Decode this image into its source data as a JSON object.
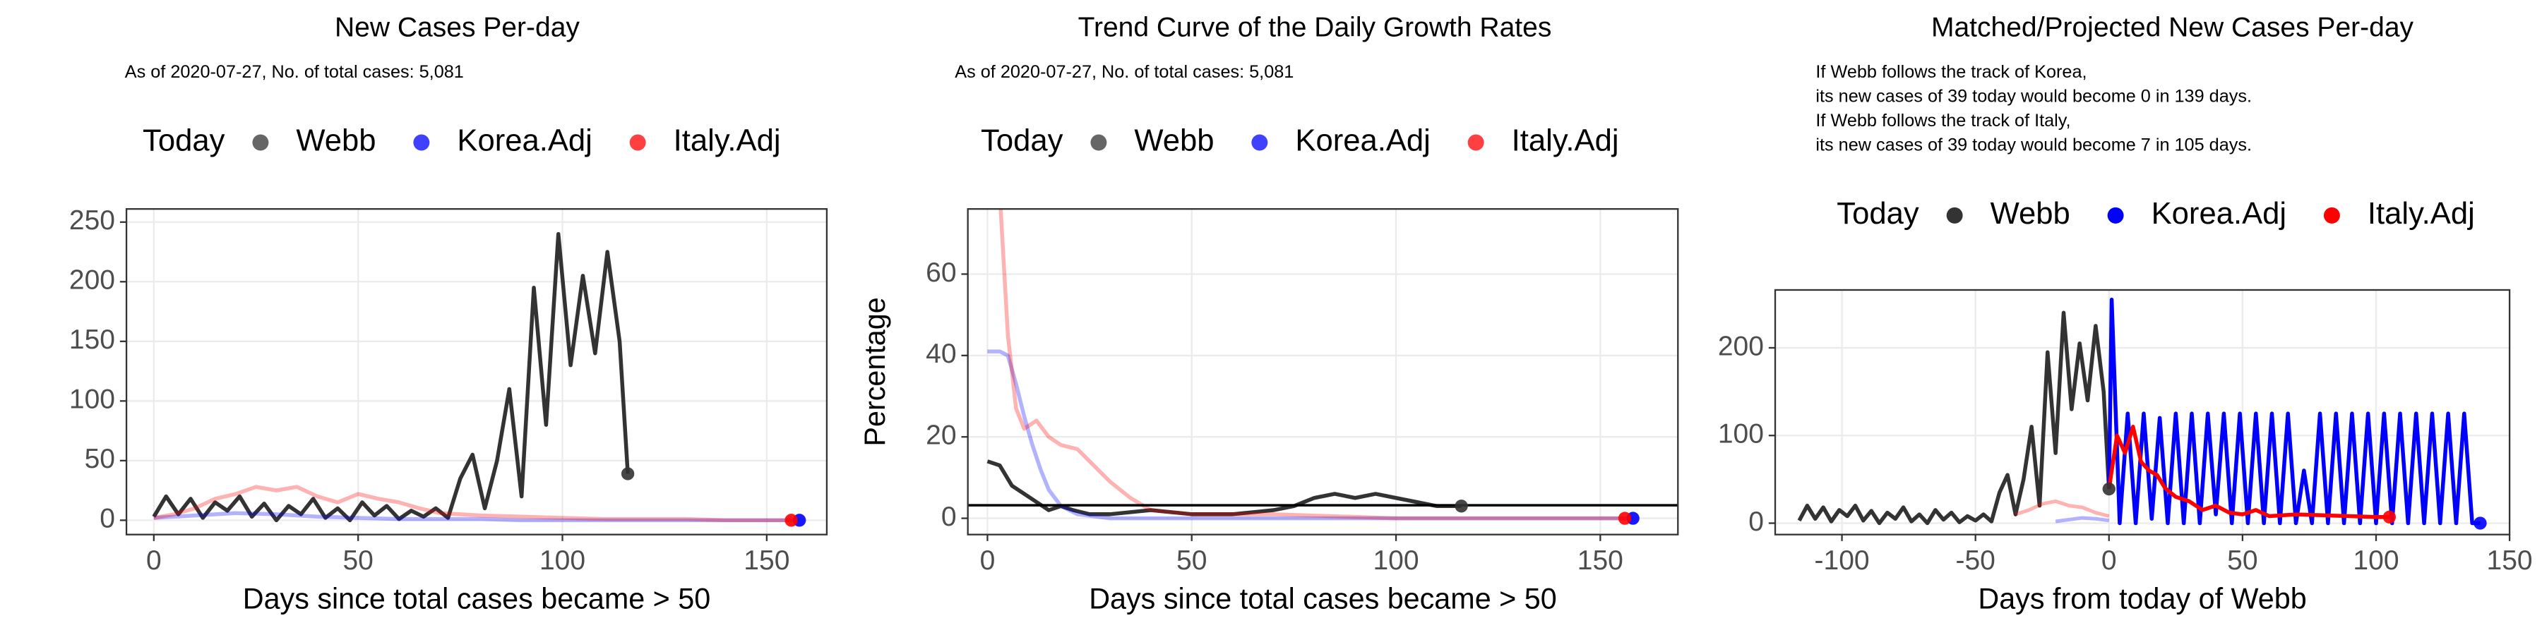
{
  "chart_data": [
    {
      "type": "line",
      "title": "New Cases Per-day",
      "subtitle": "As of 2020-07-27, No. of total cases: 5,081",
      "legend_title": "Today",
      "legend_opacity": 0.75,
      "xlabel": "Days since total cases became > 50",
      "xlim": [
        -6.7,
        164.7
      ],
      "xticks": [
        0,
        50,
        100,
        150
      ],
      "ylim": [
        -12,
        261
      ],
      "yticks": [
        0,
        50,
        100,
        150,
        200,
        250
      ],
      "grid": true,
      "series": [
        {
          "name": "Webb",
          "color": "#333333",
          "opacity": 1,
          "x": [
            0,
            3,
            6,
            9,
            12,
            15,
            18,
            21,
            24,
            27,
            30,
            33,
            36,
            39,
            42,
            45,
            48,
            51,
            54,
            57,
            60,
            63,
            66,
            69,
            72,
            75,
            78,
            81,
            84,
            87,
            90,
            93,
            96,
            99,
            102,
            105,
            108,
            111,
            114,
            116
          ],
          "values": [
            3,
            20,
            5,
            18,
            2,
            15,
            8,
            20,
            3,
            14,
            0,
            12,
            5,
            18,
            2,
            10,
            0,
            15,
            4,
            12,
            1,
            8,
            3,
            10,
            2,
            35,
            55,
            10,
            50,
            110,
            20,
            195,
            80,
            240,
            130,
            205,
            140,
            225,
            150,
            39
          ]
        },
        {
          "name": "Korea.Adj",
          "color": "#0000ff",
          "opacity": 0.3,
          "x": [
            0,
            10,
            20,
            30,
            40,
            50,
            60,
            70,
            80,
            90,
            100,
            110,
            120,
            130,
            140,
            150,
            158
          ],
          "values": [
            2,
            4,
            6,
            5,
            3,
            2,
            1,
            1,
            1,
            0,
            0,
            0,
            0,
            0,
            0,
            0,
            0
          ]
        },
        {
          "name": "Italy.Adj",
          "color": "#ff0000",
          "opacity": 0.3,
          "x": [
            0,
            5,
            10,
            15,
            20,
            25,
            30,
            35,
            40,
            45,
            50,
            55,
            60,
            65,
            70,
            80,
            90,
            100,
            110,
            120,
            130,
            140,
            150,
            156
          ],
          "values": [
            2,
            5,
            10,
            18,
            22,
            28,
            25,
            28,
            20,
            15,
            22,
            18,
            15,
            10,
            6,
            4,
            3,
            2,
            1,
            1,
            1,
            0,
            0,
            0
          ]
        }
      ]
    },
    {
      "type": "line",
      "title": "Trend Curve of the Daily Growth Rates",
      "subtitle": "As of 2020-07-27, No. of total cases: 5,081",
      "legend_title": "Today",
      "legend_opacity": 0.75,
      "xlabel": "Days since total cases became > 50",
      "ylabel": "Percentage",
      "xlim": [
        -4.8,
        169
      ],
      "xticks": [
        0,
        50,
        100,
        150
      ],
      "ylim": [
        -4,
        76
      ],
      "yticks": [
        0,
        20,
        40,
        60
      ],
      "grid": true,
      "hline": 3.2,
      "series": [
        {
          "name": "Webb",
          "color": "#333333",
          "opacity": 1,
          "x": [
            0,
            3,
            6,
            9,
            12,
            15,
            18,
            21,
            25,
            30,
            40,
            50,
            60,
            70,
            75,
            80,
            85,
            90,
            95,
            100,
            105,
            110,
            116
          ],
          "values": [
            14,
            13,
            8,
            6,
            4,
            2,
            3,
            2,
            1,
            1,
            2,
            1,
            1,
            2,
            3,
            5,
            6,
            5,
            6,
            5,
            4,
            3,
            3
          ]
        },
        {
          "name": "Korea.Adj",
          "color": "#0000ff",
          "opacity": 0.3,
          "x": [
            0,
            3,
            5,
            7,
            9,
            11,
            13,
            15,
            18,
            22,
            30,
            50,
            80,
            120,
            158
          ],
          "values": [
            41,
            41,
            40,
            33,
            25,
            18,
            12,
            7,
            3,
            1,
            0,
            0,
            0,
            0,
            0
          ]
        },
        {
          "name": "Italy.Adj",
          "color": "#ff0000",
          "opacity": 0.3,
          "x": [
            3,
            5,
            7,
            9,
            12,
            15,
            18,
            22,
            26,
            30,
            35,
            40,
            50,
            70,
            100,
            130,
            156
          ],
          "values": [
            80,
            45,
            27,
            22,
            24,
            20,
            18,
            17,
            13,
            9,
            5,
            2,
            1,
            1,
            0,
            0,
            0
          ]
        }
      ]
    },
    {
      "type": "line",
      "title": "Matched/Projected New Cases Per-day",
      "annotations": [
        "If Webb follows the track of Korea,",
        "its new cases of 39 today would become 0 in 139 days.",
        "If Webb follows the track of Italy,",
        "its new cases of 39 today would become 7 in 105 days."
      ],
      "legend_title": "Today",
      "legend_opacity": 1,
      "xlabel": "Days from today of Webb",
      "xlim": [
        -125,
        150
      ],
      "xticks": [
        -100,
        -50,
        0,
        50,
        100,
        150
      ],
      "ylim": [
        -13,
        266
      ],
      "yticks": [
        0,
        100,
        200
      ],
      "grid": true,
      "series": [
        {
          "name": "Webb",
          "color": "#333333",
          "opacity": 1,
          "x": [
            -116,
            -113,
            -110,
            -107,
            -104,
            -101,
            -98,
            -95,
            -92,
            -89,
            -86,
            -83,
            -80,
            -77,
            -74,
            -71,
            -68,
            -65,
            -62,
            -59,
            -56,
            -53,
            -50,
            -47,
            -44,
            -41,
            -38,
            -35,
            -32,
            -29,
            -26,
            -23,
            -20,
            -17,
            -14,
            -11,
            -8,
            -5,
            -2,
            0
          ],
          "values": [
            3,
            20,
            5,
            18,
            2,
            15,
            8,
            20,
            3,
            14,
            0,
            12,
            5,
            18,
            2,
            10,
            0,
            15,
            4,
            12,
            1,
            8,
            3,
            10,
            2,
            35,
            55,
            10,
            50,
            110,
            20,
            195,
            80,
            240,
            130,
            205,
            140,
            225,
            150,
            39
          ]
        },
        {
          "name": "Korea.Adj",
          "color": "#0000ff",
          "opacity": 1,
          "past": {
            "x": [
              -20,
              -15,
              -10,
              -5,
              0
            ],
            "values": [
              2,
              4,
              6,
              5,
              3
            ]
          },
          "x": [
            0,
            1,
            4,
            7,
            10,
            13,
            16,
            19,
            22,
            25,
            28,
            31,
            34,
            37,
            40,
            43,
            46,
            49,
            52,
            55,
            58,
            61,
            64,
            67,
            70,
            73,
            76,
            79,
            82,
            85,
            88,
            91,
            94,
            97,
            100,
            103,
            106,
            109,
            112,
            115,
            118,
            121,
            124,
            127,
            130,
            133,
            136,
            139
          ],
          "values": [
            39,
            255,
            0,
            125,
            0,
            125,
            5,
            120,
            0,
            125,
            0,
            125,
            0,
            125,
            10,
            125,
            0,
            125,
            0,
            125,
            0,
            125,
            0,
            125,
            0,
            60,
            0,
            125,
            0,
            125,
            0,
            125,
            0,
            125,
            0,
            125,
            0,
            125,
            0,
            125,
            0,
            125,
            0,
            125,
            0,
            125,
            0,
            0
          ]
        },
        {
          "name": "Italy.Adj",
          "color": "#ff0000",
          "opacity": 1,
          "past": {
            "x": [
              -35,
              -30,
              -25,
              -20,
              -15,
              -10,
              -5,
              0
            ],
            "values": [
              10,
              15,
              22,
              25,
              20,
              18,
              12,
              8
            ]
          },
          "x": [
            0,
            3,
            6,
            9,
            12,
            15,
            18,
            21,
            25,
            30,
            35,
            40,
            45,
            50,
            55,
            60,
            70,
            80,
            90,
            100,
            105
          ],
          "values": [
            39,
            100,
            80,
            110,
            70,
            60,
            55,
            40,
            30,
            25,
            15,
            20,
            12,
            10,
            15,
            8,
            10,
            9,
            8,
            7,
            7
          ]
        }
      ]
    }
  ]
}
